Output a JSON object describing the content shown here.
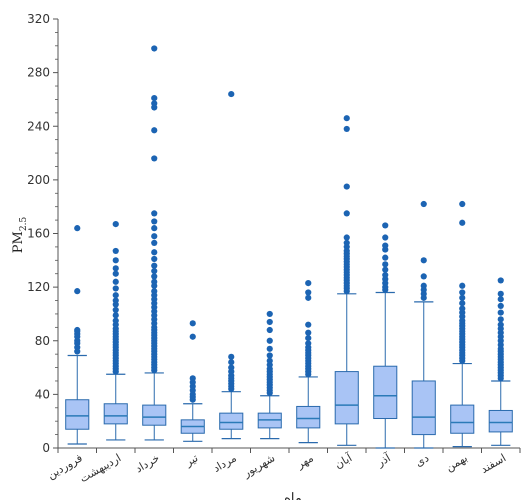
{
  "chart_data": {
    "type": "box",
    "title": "",
    "ylabel": "PM",
    "ylabel_sub": "2.5",
    "xlabel": "ماه",
    "ylim": [
      0,
      320
    ],
    "yticks": [
      0,
      40,
      80,
      120,
      160,
      200,
      240,
      280,
      320
    ],
    "grid": false,
    "colors": {
      "box_fill": "#a9c4f5",
      "box_stroke": "#2a6aad",
      "median": "#2a7ab8",
      "outlier": "#1c64b3",
      "axis": "#555555"
    },
    "categories": [
      "فروردین",
      "اردیبهشت",
      "خرداد",
      "تیر",
      "مرداد",
      "شهریور",
      "مهر",
      "آبان",
      "آذر",
      "دی",
      "بهمن",
      "اسفند"
    ],
    "series": [
      {
        "category": "فروردین",
        "whisker_low": 3,
        "q1": 14,
        "median": 24,
        "q3": 36,
        "whisker_high": 69,
        "outliers": [
          72,
          75,
          78,
          80,
          83,
          85,
          87,
          88,
          117,
          164
        ]
      },
      {
        "category": "اردیبهشت",
        "whisker_low": 6,
        "q1": 18,
        "median": 24,
        "q3": 33,
        "whisker_high": 55,
        "outliers": [
          57,
          59,
          61,
          63,
          65,
          67,
          69,
          71,
          73,
          75,
          77,
          79,
          81,
          83,
          85,
          87,
          89,
          92,
          95,
          99,
          103,
          107,
          110,
          114,
          119,
          124,
          130,
          134,
          140,
          147,
          167
        ]
      },
      {
        "category": "خرداد",
        "whisker_low": 6,
        "q1": 17,
        "median": 23,
        "q3": 32,
        "whisker_high": 56,
        "outliers": [
          58,
          60,
          62,
          64,
          66,
          68,
          70,
          72,
          74,
          76,
          78,
          80,
          82,
          84,
          86,
          88,
          90,
          93,
          96,
          99,
          102,
          105,
          108,
          111,
          114,
          117,
          121,
          124,
          128,
          132,
          136,
          141,
          146,
          153,
          158,
          164,
          169,
          175,
          216,
          237,
          254,
          257,
          261,
          298
        ]
      },
      {
        "category": "تیر",
        "whisker_low": 5,
        "q1": 11,
        "median": 16,
        "q3": 21,
        "whisker_high": 33,
        "outliers": [
          36,
          38,
          40,
          43,
          46,
          49,
          52,
          83,
          93
        ]
      },
      {
        "category": "مرداد",
        "whisker_low": 7,
        "q1": 14,
        "median": 19,
        "q3": 26,
        "whisker_high": 42,
        "outliers": [
          44,
          46,
          48,
          50,
          52,
          54,
          57,
          60,
          64,
          68,
          264
        ]
      },
      {
        "category": "شهریور",
        "whisker_low": 7,
        "q1": 15,
        "median": 21,
        "q3": 26,
        "whisker_high": 39,
        "outliers": [
          41,
          43,
          45,
          47,
          49,
          51,
          53,
          55,
          57,
          59,
          62,
          65,
          69,
          74,
          80,
          88,
          94,
          100
        ]
      },
      {
        "category": "مهر",
        "whisker_low": 4,
        "q1": 15,
        "median": 22,
        "q3": 31,
        "whisker_high": 53,
        "outliers": [
          55,
          57,
          59,
          61,
          63,
          65,
          67,
          69,
          71,
          73,
          75,
          78,
          82,
          86,
          92,
          112,
          116,
          123
        ]
      },
      {
        "category": "آبان",
        "whisker_low": 2,
        "q1": 18,
        "median": 32,
        "q3": 57,
        "whisker_high": 115,
        "outliers": [
          117,
          119,
          121,
          123,
          125,
          127,
          129,
          131,
          133,
          135,
          137,
          139,
          141,
          143,
          145,
          147,
          150,
          153,
          157,
          175,
          195,
          238,
          246
        ]
      },
      {
        "category": "آذر",
        "whisker_low": 0,
        "q1": 22,
        "median": 39,
        "q3": 61,
        "whisker_high": 116,
        "outliers": [
          118,
          120,
          123,
          126,
          129,
          133,
          137,
          142,
          148,
          151,
          157,
          166
        ]
      },
      {
        "category": "دی",
        "whisker_low": 0,
        "q1": 10,
        "median": 23,
        "q3": 50,
        "whisker_high": 109,
        "outliers": [
          112,
          115,
          118,
          121,
          128,
          140,
          182
        ]
      },
      {
        "category": "بهمن",
        "whisker_low": 1,
        "q1": 11,
        "median": 19,
        "q3": 32,
        "whisker_high": 63,
        "outliers": [
          65,
          67,
          69,
          71,
          73,
          75,
          77,
          79,
          81,
          83,
          85,
          87,
          89,
          91,
          93,
          95,
          98,
          101,
          104,
          108,
          112,
          116,
          121,
          168,
          182
        ]
      },
      {
        "category": "اسفند",
        "whisker_low": 2,
        "q1": 12,
        "median": 19,
        "q3": 28,
        "whisker_high": 50,
        "outliers": [
          52,
          54,
          56,
          58,
          60,
          62,
          64,
          66,
          68,
          70,
          72,
          74,
          77,
          80,
          83,
          86,
          89,
          92,
          96,
          101,
          106,
          111,
          115,
          125
        ]
      }
    ]
  }
}
